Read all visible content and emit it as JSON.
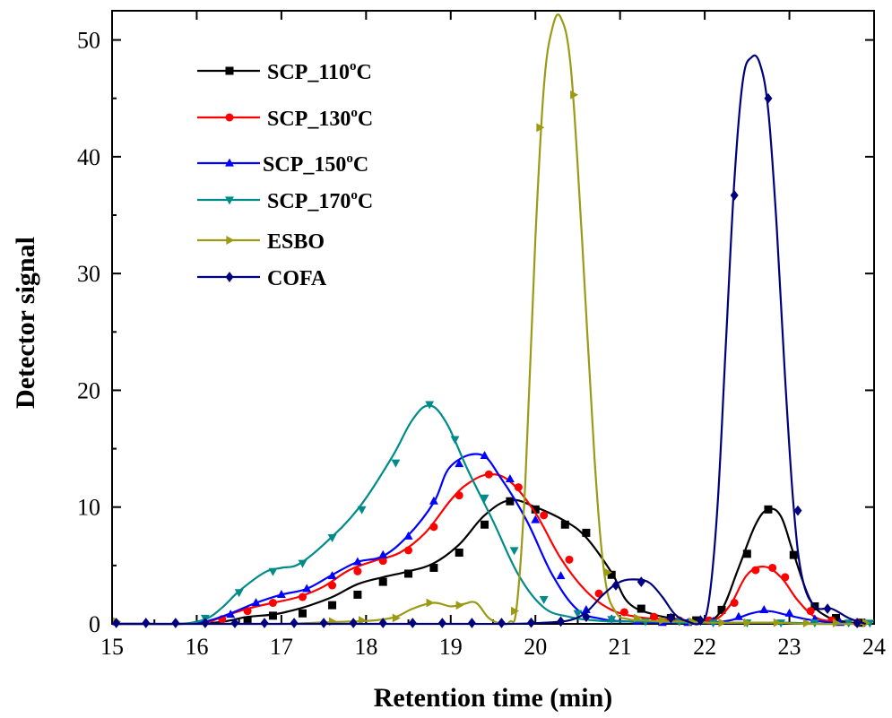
{
  "chart_data": {
    "type": "line",
    "xlabel": "Retention time (min)",
    "ylabel": "Detector signal",
    "xlim": [
      15,
      24
    ],
    "ylim": [
      0,
      52.5
    ],
    "xticks": [
      "15",
      "16",
      "17",
      "18",
      "19",
      "20",
      "21",
      "22",
      "23",
      "24"
    ],
    "yticks": [
      "0",
      "10",
      "20",
      "30",
      "40",
      "50"
    ],
    "legend_position": "top-left",
    "grid": false,
    "series": [
      {
        "name": "SCP_110",
        "sup": "o",
        "suffix": "C",
        "color": "#000000",
        "marker": "square",
        "x": [
          15.0,
          15.4,
          15.8,
          16.2,
          16.4,
          16.6,
          16.9,
          17.1,
          17.3,
          17.6,
          17.9,
          18.2,
          18.5,
          18.8,
          19.1,
          19.4,
          19.7,
          20.0,
          20.35,
          20.6,
          20.9,
          21.1,
          21.4,
          21.7,
          22.0,
          22.2,
          22.4,
          22.6,
          22.75,
          22.9,
          23.05,
          23.25,
          23.45,
          23.65,
          23.85
        ],
        "y": [
          0.0,
          0.0,
          0.0,
          0.1,
          0.3,
          0.6,
          0.8,
          1.1,
          1.5,
          2.3,
          3.4,
          4.0,
          4.5,
          5.2,
          6.8,
          9.3,
          10.6,
          10.0,
          8.8,
          7.4,
          4.4,
          1.8,
          0.8,
          0.4,
          0.2,
          1.2,
          4.8,
          8.5,
          9.8,
          9.2,
          6.0,
          2.0,
          0.6,
          0.2,
          0.0
        ],
        "markers_x": [
          16.6,
          16.9,
          17.25,
          17.6,
          17.9,
          18.2,
          18.5,
          18.8,
          19.1,
          19.4,
          19.7,
          20.0,
          20.35,
          20.6,
          20.9,
          21.25,
          21.6,
          21.9,
          22.2,
          22.5,
          22.75,
          23.05,
          23.3,
          23.55,
          23.85
        ],
        "markers_y": [
          0.3,
          0.7,
          0.9,
          1.6,
          2.5,
          3.6,
          4.3,
          4.8,
          6.1,
          8.5,
          10.5,
          9.8,
          8.5,
          7.8,
          4.2,
          1.3,
          0.5,
          0.3,
          1.2,
          6.0,
          9.8,
          5.9,
          1.5,
          0.5,
          0.1
        ]
      },
      {
        "name": "SCP_130",
        "sup": "o",
        "suffix": "C",
        "color": "#ff0000",
        "marker": "circle",
        "x": [
          15.0,
          15.4,
          15.8,
          16.1,
          16.3,
          16.6,
          16.9,
          17.2,
          17.5,
          17.8,
          18.1,
          18.4,
          18.7,
          19.0,
          19.2,
          19.45,
          19.7,
          20.0,
          20.3,
          20.6,
          20.9,
          21.2,
          21.5,
          21.8,
          22.1,
          22.3,
          22.5,
          22.7,
          22.9,
          23.1,
          23.3,
          23.5,
          23.7
        ],
        "y": [
          0.0,
          0.0,
          0.0,
          0.1,
          0.6,
          1.3,
          1.8,
          2.3,
          3.2,
          4.6,
          5.4,
          6.1,
          7.8,
          10.6,
          12.0,
          12.8,
          12.2,
          9.5,
          5.6,
          2.8,
          1.2,
          0.6,
          0.4,
          0.2,
          0.3,
          1.6,
          4.2,
          4.9,
          4.0,
          2.0,
          0.6,
          0.2,
          0.0
        ],
        "markers_x": [
          16.3,
          16.6,
          16.9,
          17.25,
          17.6,
          17.9,
          18.2,
          18.5,
          18.8,
          19.1,
          19.45,
          19.8,
          20.1,
          20.4,
          20.75,
          21.05,
          21.4,
          21.7,
          22.05,
          22.35,
          22.6,
          22.8,
          22.95,
          23.25,
          23.5,
          23.8
        ],
        "markers_y": [
          0.4,
          1.1,
          1.8,
          2.3,
          3.3,
          4.5,
          5.4,
          6.3,
          8.3,
          11.0,
          12.8,
          11.7,
          9.3,
          5.5,
          2.6,
          1.0,
          0.6,
          0.3,
          0.3,
          1.8,
          4.6,
          4.8,
          4.0,
          1.1,
          0.3,
          0.1
        ]
      },
      {
        "name": "SCP_150",
        "sup": "o",
        "suffix": "C",
        "color": "#0000ff",
        "marker": "triangle-up",
        "x": [
          15.0,
          15.4,
          15.8,
          16.1,
          16.4,
          16.7,
          17.0,
          17.3,
          17.6,
          17.9,
          18.2,
          18.5,
          18.8,
          19.0,
          19.35,
          19.6,
          19.9,
          20.2,
          20.5,
          20.8,
          21.1,
          21.4,
          21.7,
          22.0,
          22.3,
          22.55,
          22.75,
          22.95,
          23.2,
          23.5,
          23.8
        ],
        "y": [
          0.0,
          0.0,
          0.0,
          0.2,
          0.9,
          1.8,
          2.5,
          3.0,
          4.2,
          5.3,
          5.8,
          7.6,
          10.4,
          13.5,
          14.5,
          12.4,
          8.8,
          4.2,
          1.2,
          0.4,
          0.2,
          0.1,
          0.1,
          0.1,
          0.3,
          0.9,
          1.1,
          0.8,
          0.4,
          0.1,
          0.0
        ],
        "markers_x": [
          16.1,
          16.4,
          16.7,
          17.0,
          17.3,
          17.6,
          17.9,
          18.2,
          18.5,
          18.8,
          19.1,
          19.4,
          19.7,
          20.0,
          20.3,
          20.6,
          20.9,
          21.2,
          21.5,
          21.8,
          22.1,
          22.4,
          22.7,
          23.0,
          23.3,
          23.6
        ],
        "markers_y": [
          0.2,
          0.8,
          1.8,
          2.5,
          3.0,
          4.1,
          5.3,
          5.9,
          7.5,
          10.5,
          13.7,
          14.4,
          12.4,
          8.9,
          4.1,
          1.2,
          0.4,
          0.2,
          0.1,
          0.1,
          0.2,
          0.6,
          1.2,
          0.9,
          0.4,
          0.1
        ]
      },
      {
        "name": "SCP_170",
        "sup": "o",
        "suffix": "C",
        "color": "#008b8b",
        "marker": "triangle-down",
        "x": [
          15.0,
          15.4,
          15.8,
          16.1,
          16.3,
          16.5,
          16.8,
          17.0,
          17.2,
          17.5,
          17.9,
          18.3,
          18.55,
          18.75,
          18.95,
          19.2,
          19.5,
          19.8,
          20.1,
          20.4,
          20.7,
          21.0,
          21.4,
          21.8,
          22.2,
          22.6,
          23.0,
          23.4,
          23.8
        ],
        "y": [
          0.0,
          0.0,
          0.0,
          0.4,
          1.4,
          2.8,
          4.4,
          4.8,
          5.1,
          6.8,
          9.8,
          14.2,
          17.5,
          18.7,
          17.2,
          13.2,
          8.8,
          4.2,
          1.4,
          0.6,
          0.3,
          0.2,
          0.2,
          0.1,
          0.1,
          0.1,
          0.1,
          0.0,
          0.0
        ],
        "markers_x": [
          16.1,
          16.5,
          16.9,
          17.25,
          17.6,
          17.95,
          18.35,
          18.75,
          19.05,
          19.4,
          19.75,
          20.1,
          20.5,
          20.9,
          21.3,
          21.7,
          22.1,
          22.5,
          22.9,
          23.3,
          23.7,
          23.95
        ],
        "markers_y": [
          0.5,
          2.7,
          4.5,
          5.2,
          7.4,
          9.8,
          13.8,
          18.8,
          15.8,
          10.8,
          6.3,
          2.1,
          0.9,
          0.4,
          0.2,
          0.2,
          0.1,
          0.1,
          0.1,
          0.1,
          0.1,
          0.0
        ]
      },
      {
        "name": "ESBO",
        "sup": "",
        "suffix": "",
        "color": "#9a9a14",
        "marker": "triangle-right",
        "x": [
          15.0,
          15.4,
          15.8,
          16.2,
          16.6,
          17.0,
          17.4,
          17.8,
          18.1,
          18.35,
          18.55,
          18.8,
          19.0,
          19.15,
          19.3,
          19.45,
          19.6,
          19.7,
          19.78,
          19.88,
          20.0,
          20.1,
          20.2,
          20.3,
          20.42,
          20.55,
          20.7,
          20.82,
          20.95,
          21.1,
          21.3,
          21.5,
          21.8,
          22.1,
          22.4,
          22.8,
          23.2,
          23.6,
          23.9
        ],
        "y": [
          0.0,
          0.0,
          0.0,
          0.0,
          0.0,
          0.0,
          0.1,
          0.2,
          0.3,
          0.6,
          1.3,
          1.8,
          1.5,
          1.7,
          1.8,
          0.5,
          0.0,
          0.2,
          1.5,
          12.0,
          33.0,
          46.0,
          51.0,
          51.9,
          47.5,
          33.0,
          14.0,
          4.0,
          1.0,
          0.4,
          0.3,
          0.2,
          0.2,
          0.1,
          0.1,
          0.1,
          0.0,
          0.0,
          0.0
        ],
        "markers_x": [
          15.05,
          17.6,
          17.95,
          18.35,
          18.75,
          19.1,
          19.75,
          20.05,
          20.45,
          20.85,
          21.2,
          21.5,
          21.85,
          22.2,
          22.5,
          22.85,
          23.2,
          23.55,
          23.9
        ],
        "markers_y": [
          0.2,
          0.2,
          0.3,
          0.5,
          1.8,
          1.6,
          1.1,
          42.5,
          45.3,
          4.4,
          0.5,
          0.3,
          0.2,
          0.1,
          0.1,
          0.1,
          0.0,
          0.0,
          0.0
        ]
      },
      {
        "name": "COFA",
        "sup": "",
        "suffix": "",
        "color": "#00007f",
        "marker": "diamond",
        "x": [
          15.0,
          15.6,
          16.2,
          16.8,
          17.4,
          18.0,
          18.6,
          19.2,
          19.7,
          20.1,
          20.4,
          20.6,
          20.8,
          21.0,
          21.2,
          21.35,
          21.5,
          21.65,
          21.8,
          21.95,
          22.05,
          22.15,
          22.25,
          22.35,
          22.45,
          22.55,
          22.65,
          22.75,
          22.85,
          22.95,
          23.05,
          23.15,
          23.3,
          23.5,
          23.7,
          23.9
        ],
        "y": [
          0.0,
          0.0,
          0.0,
          0.0,
          0.0,
          0.0,
          0.0,
          0.0,
          0.0,
          0.1,
          0.3,
          1.0,
          2.5,
          3.6,
          3.8,
          3.5,
          2.3,
          0.8,
          0.2,
          0.1,
          2.0,
          10.0,
          24.0,
          38.0,
          46.5,
          48.5,
          48.0,
          44.0,
          34.0,
          21.0,
          10.0,
          4.0,
          1.5,
          1.3,
          0.5,
          0.0
        ],
        "markers_x": [
          15.05,
          15.4,
          15.75,
          16.1,
          16.45,
          16.8,
          17.15,
          17.5,
          17.85,
          18.2,
          18.55,
          18.9,
          19.25,
          19.6,
          19.95,
          20.3,
          20.6,
          20.95,
          21.25,
          21.6,
          21.95,
          22.35,
          22.75,
          23.1,
          23.45,
          23.8
        ],
        "markers_y": [
          0.0,
          0.0,
          0.0,
          0.0,
          0.0,
          0.0,
          0.0,
          0.0,
          0.0,
          0.0,
          0.0,
          0.0,
          0.0,
          0.0,
          0.1,
          0.2,
          0.6,
          3.3,
          3.6,
          0.5,
          0.3,
          36.7,
          45.0,
          9.7,
          1.3,
          0.0
        ]
      }
    ]
  }
}
